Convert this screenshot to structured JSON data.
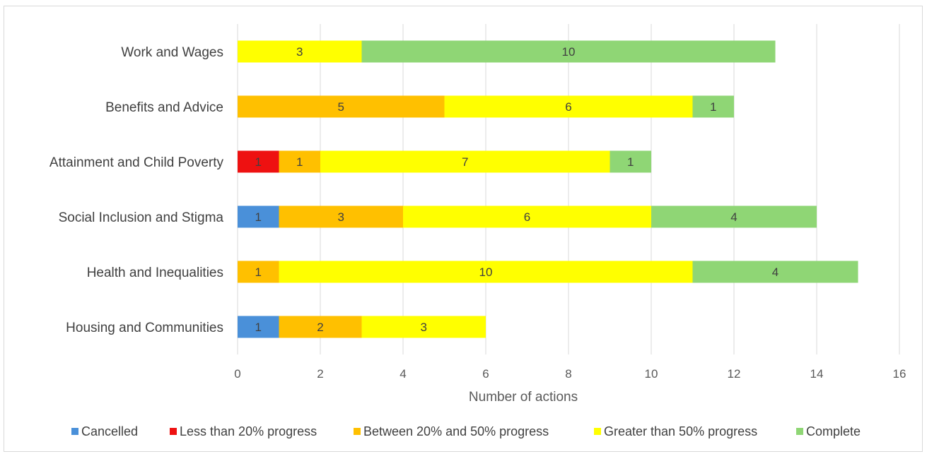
{
  "chart_data": {
    "type": "bar",
    "orientation": "horizontal",
    "stacked": true,
    "categories": [
      "Work and Wages",
      "Benefits and Advice",
      "Attainment and Child Poverty",
      "Social Inclusion and Stigma",
      "Health and Inequalities",
      "Housing and Communities"
    ],
    "series": [
      {
        "name": "Cancelled",
        "color": "#4a90d9",
        "values": [
          0,
          0,
          0,
          1,
          0,
          1
        ]
      },
      {
        "name": "Less than 20% progress",
        "color": "#ee1111",
        "values": [
          0,
          0,
          1,
          0,
          0,
          0
        ]
      },
      {
        "name": "Between 20% and 50% progress",
        "color": "#ffc000",
        "values": [
          0,
          5,
          1,
          3,
          1,
          2
        ]
      },
      {
        "name": "Greater than 50% progress",
        "color": "#ffff00",
        "values": [
          3,
          6,
          7,
          6,
          10,
          3
        ]
      },
      {
        "name": "Complete",
        "color": "#8fd675",
        "values": [
          10,
          1,
          1,
          4,
          4,
          0
        ]
      }
    ],
    "xlabel": "Number  of actions",
    "ylabel": "",
    "xlim": [
      0,
      16
    ],
    "xticks": [
      0,
      2,
      4,
      6,
      8,
      10,
      12,
      14,
      16
    ],
    "grid": true,
    "legend": "bottom"
  }
}
